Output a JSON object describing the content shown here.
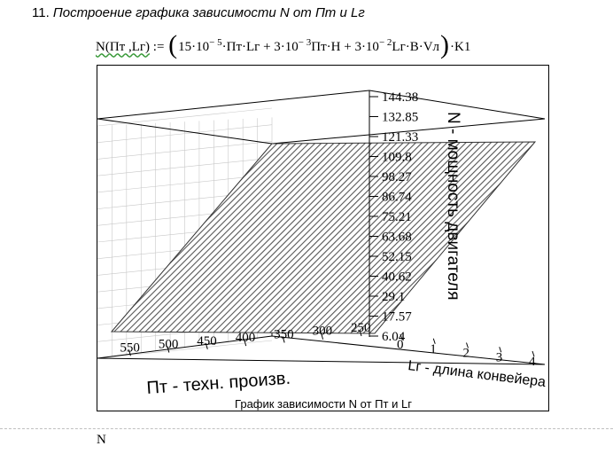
{
  "heading": {
    "number": "11.",
    "text": "Построение графика зависимости N от Пт и Lг"
  },
  "formula": {
    "lhs": "N(Пт ,Lг)",
    "assign": ":=",
    "c1": "15·10",
    "e1": "− 5",
    "t1": "·Пт·Lг + 3·10",
    "e2": "− 3",
    "t2": "Пт·H + 3·10",
    "e3": "− 2",
    "t3": "Lг·B·Vл",
    "tail": "·K1"
  },
  "plot": {
    "caption": "График зависимости N от Пт и Lг",
    "z_axis_title": "N - мощность двигателя",
    "y_axis_title": "Lг - длина конвейера",
    "x_axis_title": "Пт - техн. произв.",
    "z_ticks": [
      "144.38",
      "132.85",
      "121.33",
      "109.8",
      "98.27",
      "86.74",
      "75.21",
      "63.68",
      "52.15",
      "40.62",
      "29.1",
      "17.57",
      "6.04"
    ],
    "x_ticks": [
      "0",
      "550",
      "500",
      "450",
      "400",
      "350",
      "300",
      "250"
    ],
    "y_ticks": [
      "0",
      "1",
      "2",
      "3",
      "4"
    ],
    "colors": {
      "surface_hatch": "#555555",
      "box_lines": "#000000",
      "grid": "#c8c8c8"
    }
  },
  "next_region": {
    "text": "N"
  }
}
